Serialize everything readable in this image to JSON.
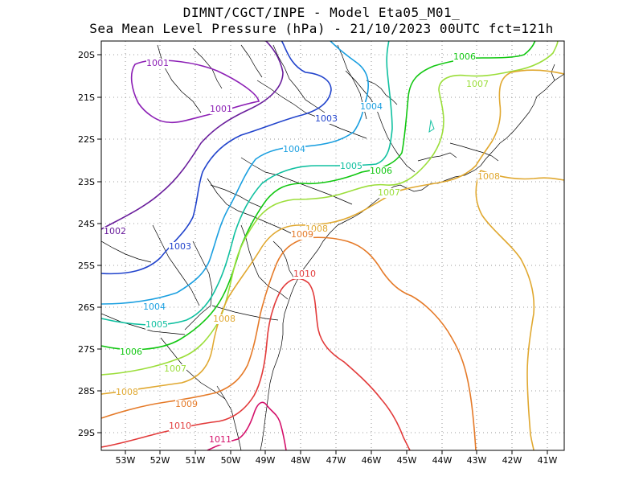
{
  "header": {
    "line1": "DIMNT/CGCT/INPE -  Model Eta05_M01_",
    "line2": "Sea Mean Level Pressure (hPa) - 21/10/2023 00UTC fct=121h"
  },
  "axes": {
    "lon_labels": [
      "53W",
      "52W",
      "51W",
      "50W",
      "49W",
      "48W",
      "47W",
      "46W",
      "45W",
      "44W",
      "43W",
      "42W",
      "41W"
    ],
    "lat_labels": [
      "20S",
      "21S",
      "22S",
      "23S",
      "24S",
      "25S",
      "26S",
      "27S",
      "28S",
      "29S"
    ]
  },
  "contour_labels": [
    "1001",
    "1001",
    "1002",
    "1003",
    "1003",
    "1004",
    "1004",
    "1004",
    "1005",
    "1005",
    "1006",
    "1006",
    "1006",
    "1007",
    "1007",
    "1007",
    "1008",
    "1008",
    "1008",
    "1008",
    "1009",
    "1009",
    "1010",
    "1010",
    "1011"
  ],
  "colors": {
    "1001": "#8c1fb5",
    "1002": "#6a1e9c",
    "1003": "#2244cc",
    "1004": "#1a9fe0",
    "1005": "#10c0a0",
    "1006": "#11c711",
    "1007": "#9bde3a",
    "1008": "#e0a830",
    "1009": "#e57a28",
    "1010": "#e23a3a",
    "1011": "#d4106a"
  }
}
